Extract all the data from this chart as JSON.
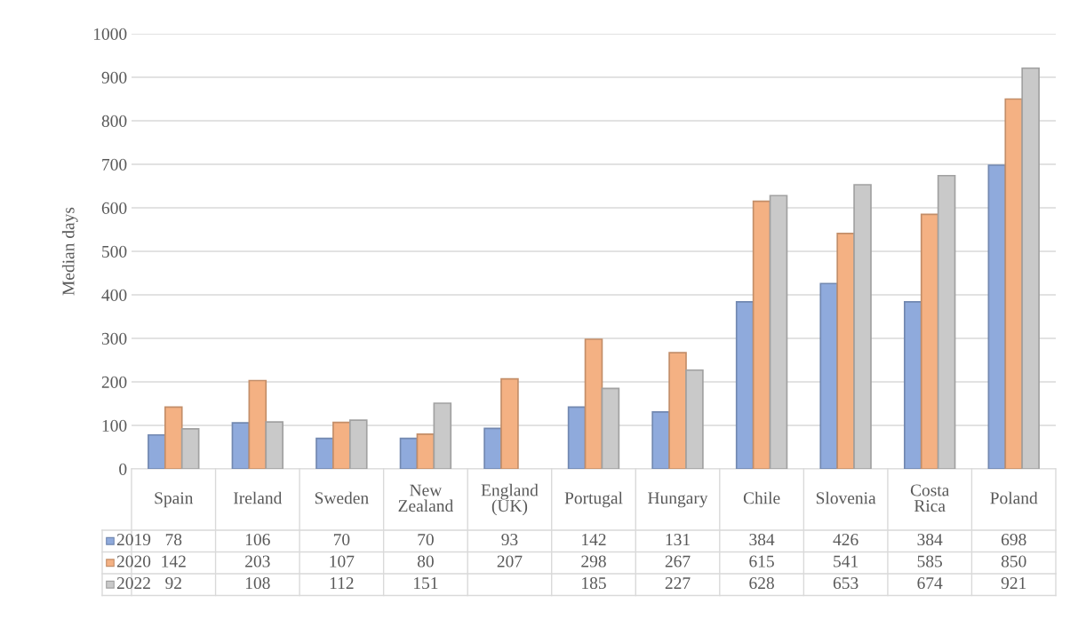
{
  "chart_data": {
    "type": "bar",
    "ylabel": "Median days",
    "categories": [
      "Spain",
      "Ireland",
      "Sweden",
      "New Zealand",
      "England (UK)",
      "Portugal",
      "Hungary",
      "Chile",
      "Slovenia",
      "Costa Rica",
      "Poland"
    ],
    "series": [
      {
        "name": "2019",
        "color": "#8faadc",
        "values": [
          78,
          106,
          70,
          70,
          93,
          142,
          131,
          384,
          426,
          384,
          698
        ]
      },
      {
        "name": "2020",
        "color": "#f4b183",
        "values": [
          142,
          203,
          107,
          80,
          207,
          298,
          267,
          615,
          541,
          585,
          850
        ]
      },
      {
        "name": "2022",
        "color": "#c9c9c9",
        "values": [
          92,
          108,
          112,
          151,
          null,
          185,
          227,
          628,
          653,
          674,
          921
        ]
      }
    ],
    "ylim": [
      0,
      1000
    ],
    "yticks": [
      0,
      100,
      200,
      300,
      400,
      500,
      600,
      700,
      800,
      900,
      1000
    ],
    "grid": "y",
    "data_labels": true,
    "legend": "bottom"
  }
}
